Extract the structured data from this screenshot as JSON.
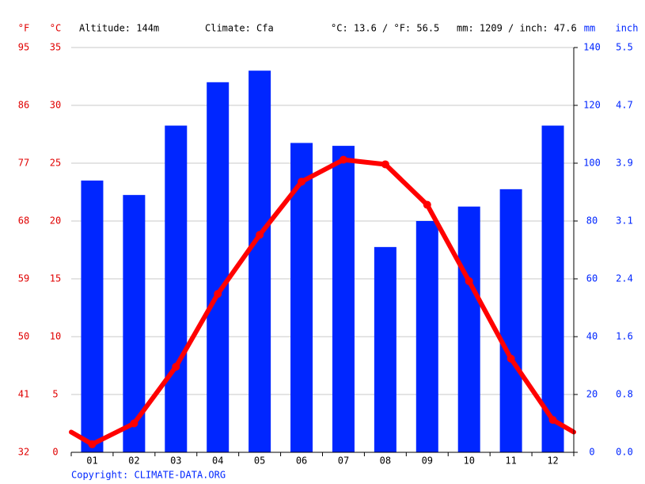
{
  "chart_data": {
    "type": "combo",
    "annotations": [
      "Altitude: 144m",
      "Climate: Cfa",
      "°C: 13.6 / °F: 56.5",
      "mm: 1209 / inch: 47.6"
    ],
    "f_label": "°F",
    "y_label": "°C",
    "y2_label": "mm",
    "inch_label": "inch",
    "source": "Copyright: CLIMATE-DATA.ORG",
    "categories": [
      "01",
      "02",
      "03",
      "04",
      "05",
      "06",
      "07",
      "08",
      "09",
      "10",
      "11",
      "12"
    ],
    "series": [
      {
        "type": "bar",
        "axis": "y2",
        "color": "#0026ff",
        "values": [
          94,
          89,
          113,
          128,
          132,
          107,
          106,
          71,
          80,
          85,
          91,
          113
        ]
      },
      {
        "type": "line",
        "color": "#ff0000",
        "values": [
          0.7,
          2.5,
          7.4,
          13.7,
          18.8,
          23.4,
          25.3,
          24.9,
          21.4,
          14.8,
          8.1,
          2.8
        ]
      }
    ],
    "ylim": [
      0,
      35
    ],
    "yticks": [
      0,
      5,
      10,
      15,
      20,
      25,
      30,
      35
    ],
    "flim": [
      32,
      95
    ],
    "fticks": [
      32,
      41,
      50,
      59,
      68,
      77,
      86,
      95
    ],
    "y2lim": [
      0,
      140
    ],
    "y2ticks": [
      0,
      20,
      40,
      60,
      80,
      100,
      120,
      140
    ],
    "inchlim": [
      0,
      5.512
    ],
    "inchticks": [
      {
        "value": 0,
        "label": "0.0"
      },
      {
        "value": 0.787,
        "label": "0.8"
      },
      {
        "value": 1.575,
        "label": "1.6"
      },
      {
        "value": 2.362,
        "label": "2.4"
      },
      {
        "value": 3.1496,
        "label": "3.1"
      },
      {
        "value": 3.937,
        "label": "3.9"
      },
      {
        "value": 4.724,
        "label": "4.7"
      },
      {
        "value": 5.512,
        "label": "5.5"
      }
    ],
    "grid": true
  }
}
